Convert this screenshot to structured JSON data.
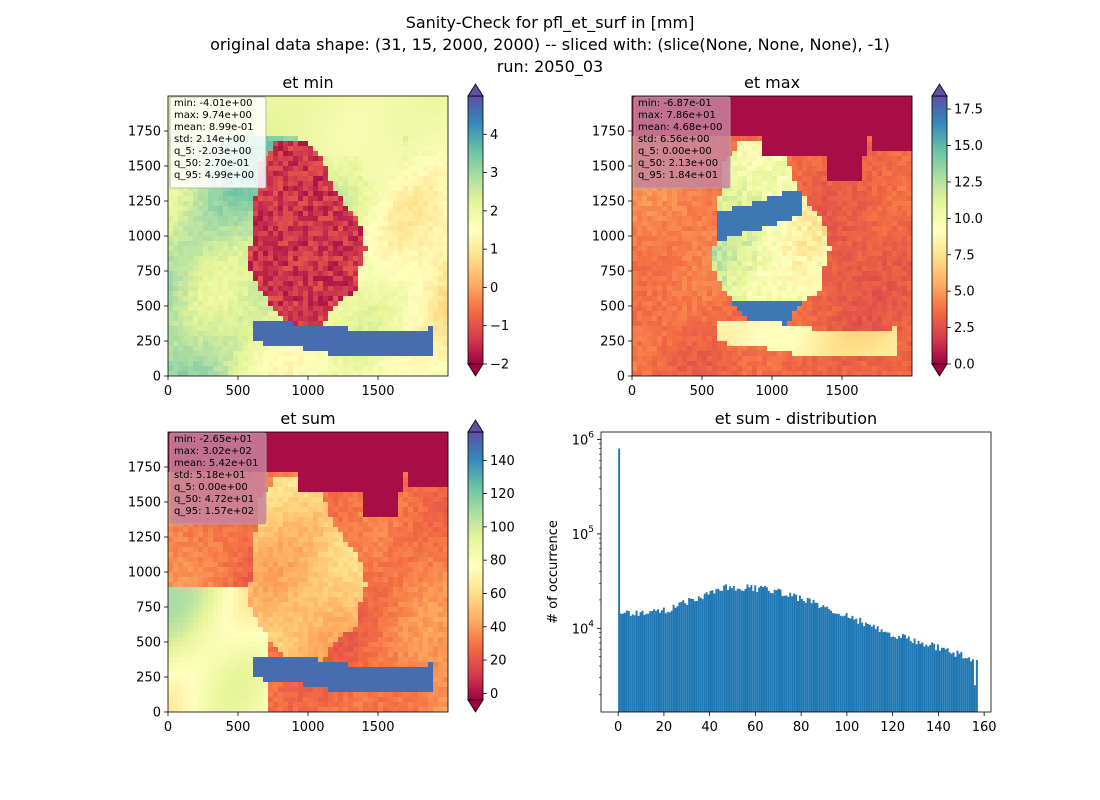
{
  "figure": {
    "title_lines": [
      "Sanity-Check for pfl_et_surf in [mm]",
      "original data shape: (31, 15, 2000, 2000) -- sliced with: (slice(None, None, None), -1)",
      "run: 2050_03"
    ]
  },
  "chart_data": [
    {
      "type": "heatmap",
      "title": "et min",
      "xticks": [
        "0",
        "500",
        "1000",
        "1500"
      ],
      "yticks": [
        "0",
        "250",
        "500",
        "750",
        "1000",
        "1250",
        "1500",
        "1750"
      ],
      "xlim": [
        0,
        2000
      ],
      "ylim": [
        0,
        2000
      ],
      "colormap": "Spectral",
      "colorbar": {
        "min": -2,
        "max": 5,
        "ticks": [
          "−2",
          "−1",
          "0",
          "1",
          "2",
          "3",
          "4"
        ],
        "tick_values": [
          -2,
          -1,
          0,
          1,
          2,
          3,
          4
        ],
        "extend": "both"
      },
      "stats": [
        "min: -4.01e+00",
        "max: 9.74e+00",
        "mean: 8.99e-01",
        "std: 2.14e+00",
        "q_5: -2.03e+00",
        "q_50: 2.70e-01",
        "q_95: 4.99e+00"
      ]
    },
    {
      "type": "heatmap",
      "title": "et max",
      "xticks": [
        "0",
        "500",
        "1000",
        "1500"
      ],
      "yticks": [
        "0",
        "250",
        "500",
        "750",
        "1000",
        "1250",
        "1500",
        "1750"
      ],
      "xlim": [
        0,
        2000
      ],
      "ylim": [
        0,
        2000
      ],
      "colormap": "Spectral",
      "colorbar": {
        "min": 0,
        "max": 18.4,
        "ticks": [
          "0.0",
          "2.5",
          "5.0",
          "7.5",
          "10.0",
          "12.5",
          "15.0",
          "17.5"
        ],
        "tick_values": [
          0,
          2.5,
          5,
          7.5,
          10,
          12.5,
          15,
          17.5
        ],
        "extend": "both"
      },
      "stats": [
        "min: -6.87e-01",
        "max: 7.86e+01",
        "mean: 4.68e+00",
        "std: 6.56e+00",
        "q_5: 0.00e+00",
        "q_50: 2.13e+00",
        "q_95: 1.84e+01"
      ]
    },
    {
      "type": "heatmap",
      "title": "et sum",
      "xticks": [
        "0",
        "500",
        "1000",
        "1500"
      ],
      "yticks": [
        "0",
        "250",
        "500",
        "750",
        "1000",
        "1250",
        "1500",
        "1750"
      ],
      "xlim": [
        0,
        2000
      ],
      "ylim": [
        0,
        2000
      ],
      "colormap": "Spectral",
      "colorbar": {
        "min": -4,
        "max": 157,
        "ticks": [
          "0",
          "20",
          "40",
          "60",
          "80",
          "100",
          "120",
          "140"
        ],
        "tick_values": [
          0,
          20,
          40,
          60,
          80,
          100,
          120,
          140
        ],
        "extend": "both"
      },
      "stats": [
        "min: -2.65e+01",
        "max: 3.02e+02",
        "mean: 5.42e+01",
        "std: 5.18e+01",
        "q_5: 0.00e+00",
        "q_50: 4.72e+01",
        "q_95: 1.57e+02"
      ]
    },
    {
      "type": "bar",
      "title": "et sum - distribution",
      "xlabel": "",
      "ylabel": "# of occurrence",
      "yscale": "log",
      "xlim": [
        -7.5,
        163
      ],
      "ylim": [
        1300,
        1200000
      ],
      "xticks": [
        "0",
        "20",
        "40",
        "60",
        "80",
        "100",
        "120",
        "140",
        "160"
      ],
      "xtick_values": [
        0,
        20,
        40,
        60,
        80,
        100,
        120,
        140,
        160
      ],
      "yticks": [
        "10",
        "10",
        "10"
      ],
      "ytick_exponents": [
        "4",
        "5",
        "6"
      ],
      "ytick_values": [
        10000,
        100000,
        1000000
      ],
      "color": "#1f77b4",
      "bin_width": 0.85,
      "bins_x": [
        0,
        20,
        40,
        46,
        66,
        80,
        100,
        120,
        140,
        157
      ],
      "bins_y": [
        14000,
        15500,
        24000,
        28000,
        26000,
        20500,
        13500,
        8500,
        6200,
        4500
      ],
      "spike": {
        "x": 0,
        "y": 800000
      },
      "dip": {
        "x": 155.5,
        "y": 2500
      }
    }
  ]
}
